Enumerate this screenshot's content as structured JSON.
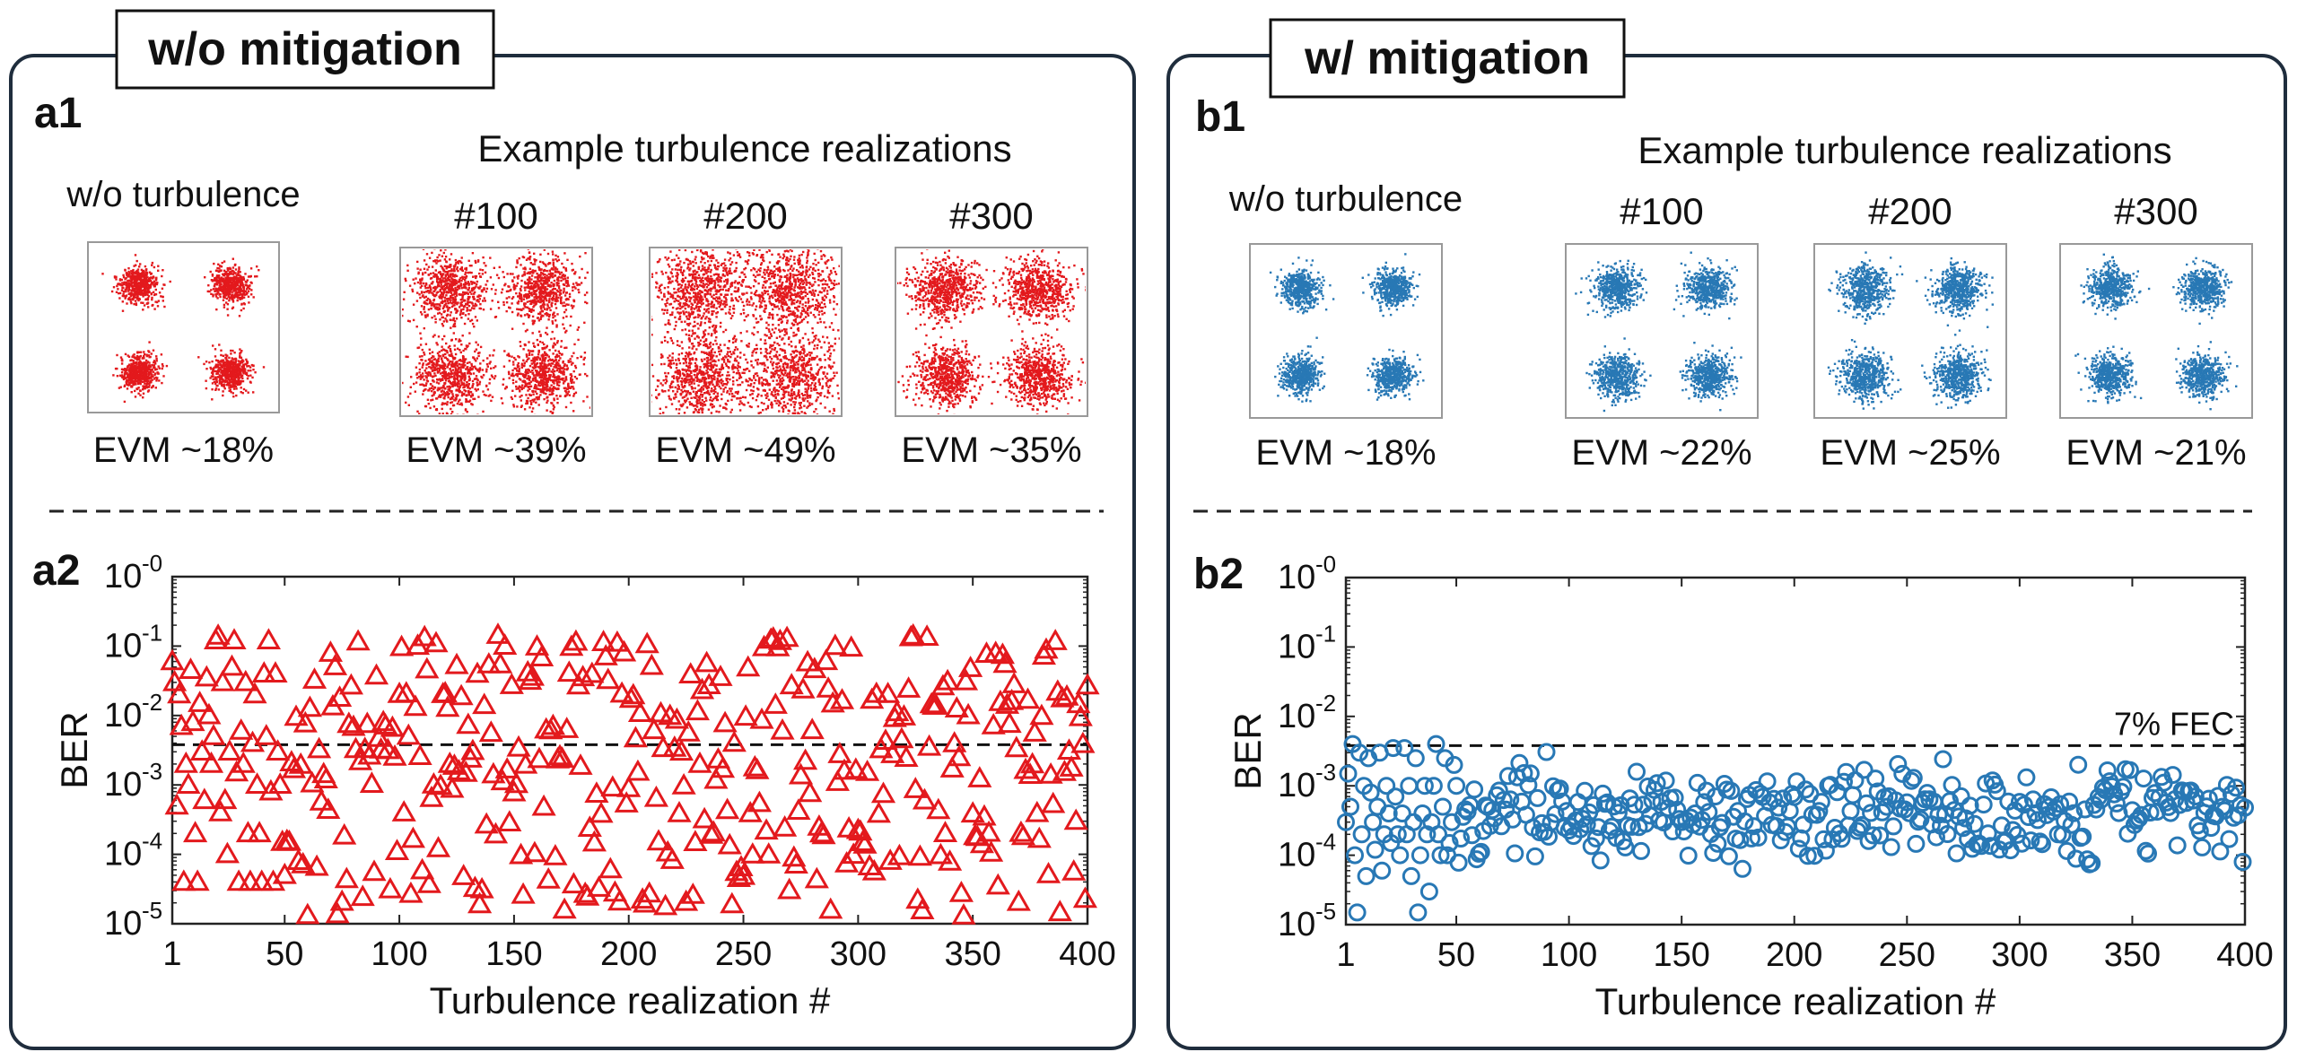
{
  "panels": [
    {
      "id": "a",
      "title": "w/o mitigation",
      "label_top": "a1",
      "label_bottom": "a2",
      "color": "#e3191d",
      "marker": "triangle",
      "examples_heading": "Example turbulence realizations",
      "constellations": [
        {
          "label": "w/o turbulence",
          "evm": "EVM ~18%",
          "spread": 0.18
        },
        {
          "label": "#100",
          "evm": "EVM ~39%",
          "spread": 0.39
        },
        {
          "label": "#200",
          "evm": "EVM ~49%",
          "spread": 0.49
        },
        {
          "label": "#300",
          "evm": "EVM ~35%",
          "spread": 0.35
        }
      ]
    },
    {
      "id": "b",
      "title": "w/ mitigation",
      "label_top": "b1",
      "label_bottom": "b2",
      "color": "#2878b5",
      "marker": "circle",
      "examples_heading": "Example turbulence realizations",
      "constellations": [
        {
          "label": "w/o turbulence",
          "evm": "EVM ~18%",
          "spread": 0.18
        },
        {
          "label": "#100",
          "evm": "EVM ~22%",
          "spread": 0.22
        },
        {
          "label": "#200",
          "evm": "EVM ~25%",
          "spread": 0.25
        },
        {
          "label": "#300",
          "evm": "EVM ~21%",
          "spread": 0.21
        }
      ]
    }
  ],
  "chart_data": [
    {
      "type": "scatter",
      "panel": "a2",
      "title": "",
      "xlabel": "Turbulence realization #",
      "ylabel": "BER",
      "xlim": [
        1,
        400
      ],
      "ylim_log10": [
        -5,
        0
      ],
      "yscale": "log",
      "xticks": [
        1,
        50,
        100,
        150,
        200,
        250,
        300,
        350,
        400
      ],
      "xtick_labels": [
        "1",
        "50",
        "100",
        "150",
        "200",
        "250",
        "300",
        "350",
        "400"
      ],
      "ytick_exponents": [
        "-0",
        "-1",
        "-2",
        "-3",
        "-4",
        "-5"
      ],
      "ytick_base": "10",
      "threshold": 0.0038,
      "threshold_label": "",
      "series": [
        {
          "name": "BER w/o mitigation",
          "n": 400,
          "log10_range": [
            -4.9,
            -0.8
          ],
          "values": [
            0.06,
            0.03,
            0.0005,
            0.02,
            0.007,
            4e-05,
            0.002,
            0.001,
            0.045,
            0.008,
            0.0002,
            4e-05,
            0.015,
            0.003,
            0.0006,
            0.035,
            0.01,
            0.002,
            0.005,
            0.12,
            0.14,
            0.0004,
            0.03,
            0.0006,
            0.0001,
            0.003,
            0.05,
            0.12,
            0.0015,
            4e-05,
            0.006,
            0.002,
            0.03,
            0.0002,
            4e-05,
            0.004,
            0.02,
            0.001,
            0.0002,
            4e-05,
            0.04,
            0.005,
            0.12,
            0.0008,
            4e-05,
            0.04,
            0.003,
            0.001,
            0.00015,
            5e-05
          ]
        }
      ]
    },
    {
      "type": "scatter",
      "panel": "b2",
      "title": "",
      "xlabel": "Turbulence realization #",
      "ylabel": "BER",
      "xlim": [
        1,
        400
      ],
      "ylim_log10": [
        -5,
        0
      ],
      "yscale": "log",
      "xticks": [
        1,
        50,
        100,
        150,
        200,
        250,
        300,
        350,
        400
      ],
      "xtick_labels": [
        "1",
        "50",
        "100",
        "150",
        "200",
        "250",
        "300",
        "350",
        "400"
      ],
      "ytick_exponents": [
        "-0",
        "-1",
        "-2",
        "-3",
        "-4",
        "-5"
      ],
      "ytick_base": "10",
      "threshold": 0.0038,
      "threshold_label": "7% FEC",
      "series": [
        {
          "name": "BER w/ mitigation",
          "n": 400,
          "log10_range": [
            -4.9,
            -2.4
          ],
          "values": [
            0.0003,
            0.0015,
            0.0005,
            0.004,
            0.0001,
            1.5e-05,
            0.003,
            0.0002,
            0.001,
            5e-05,
            0.0025,
            0.0008,
            0.0003,
            0.00012,
            0.0005,
            0.003,
            6e-05,
            0.0002,
            0.001,
            0.0004,
            0.00015,
            0.0035,
            0.0007,
            0.0002,
            0.0001,
            0.0004,
            0.0035,
            0.0002,
            0.001,
            5e-05,
            0.0003,
            0.0025,
            1.5e-05,
            0.0001,
            0.0004,
            0.001,
            0.0002,
            3e-05,
            0.0003,
            0.001,
            0.004,
            0.0002,
            0.0001,
            0.0005,
            0.0025,
            0.0001,
            0.00015,
            0.0003,
            0.002,
            0.001
          ]
        }
      ]
    }
  ]
}
